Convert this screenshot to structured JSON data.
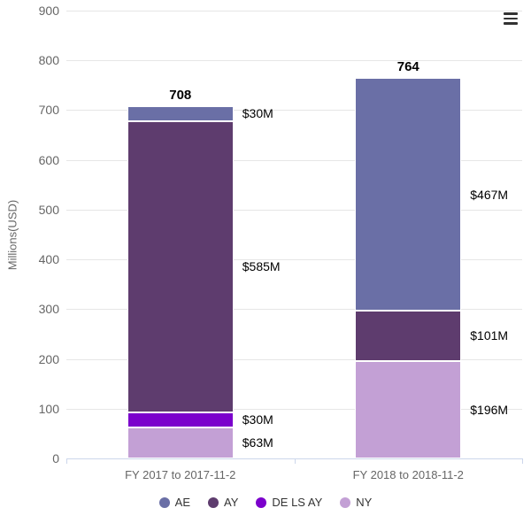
{
  "chart_data": {
    "type": "bar",
    "stacked": true,
    "title": "",
    "xlabel": "",
    "ylabel": "Millions(USD)",
    "ylim": [
      0,
      900
    ],
    "ytick_interval": 100,
    "grid": true,
    "categories": [
      "FY 2017 to 2017-11-2",
      "FY 2018 to 2018-11-2"
    ],
    "series": [
      {
        "name": "NY",
        "color": "#c3a0d5",
        "values": [
          63,
          196
        ],
        "labels": [
          "$63M",
          "$196M"
        ]
      },
      {
        "name": "DE LS AY",
        "color": "#7b00cc",
        "values": [
          30,
          0
        ],
        "labels": [
          "$30M",
          ""
        ]
      },
      {
        "name": "AY",
        "color": "#5e3c6e",
        "values": [
          585,
          101
        ],
        "labels": [
          "$585M",
          "$101M"
        ]
      },
      {
        "name": "AE",
        "color": "#6a6fa6",
        "values": [
          30,
          467
        ],
        "labels": [
          "$30M",
          "$467M"
        ]
      }
    ],
    "totals": [
      "708",
      "764"
    ],
    "legend": [
      "AE",
      "AY",
      "DE LS AY",
      "NY"
    ],
    "legend_position": "bottom"
  },
  "toolbar": {
    "context_menu_icon": "hamburger-menu-icon"
  }
}
